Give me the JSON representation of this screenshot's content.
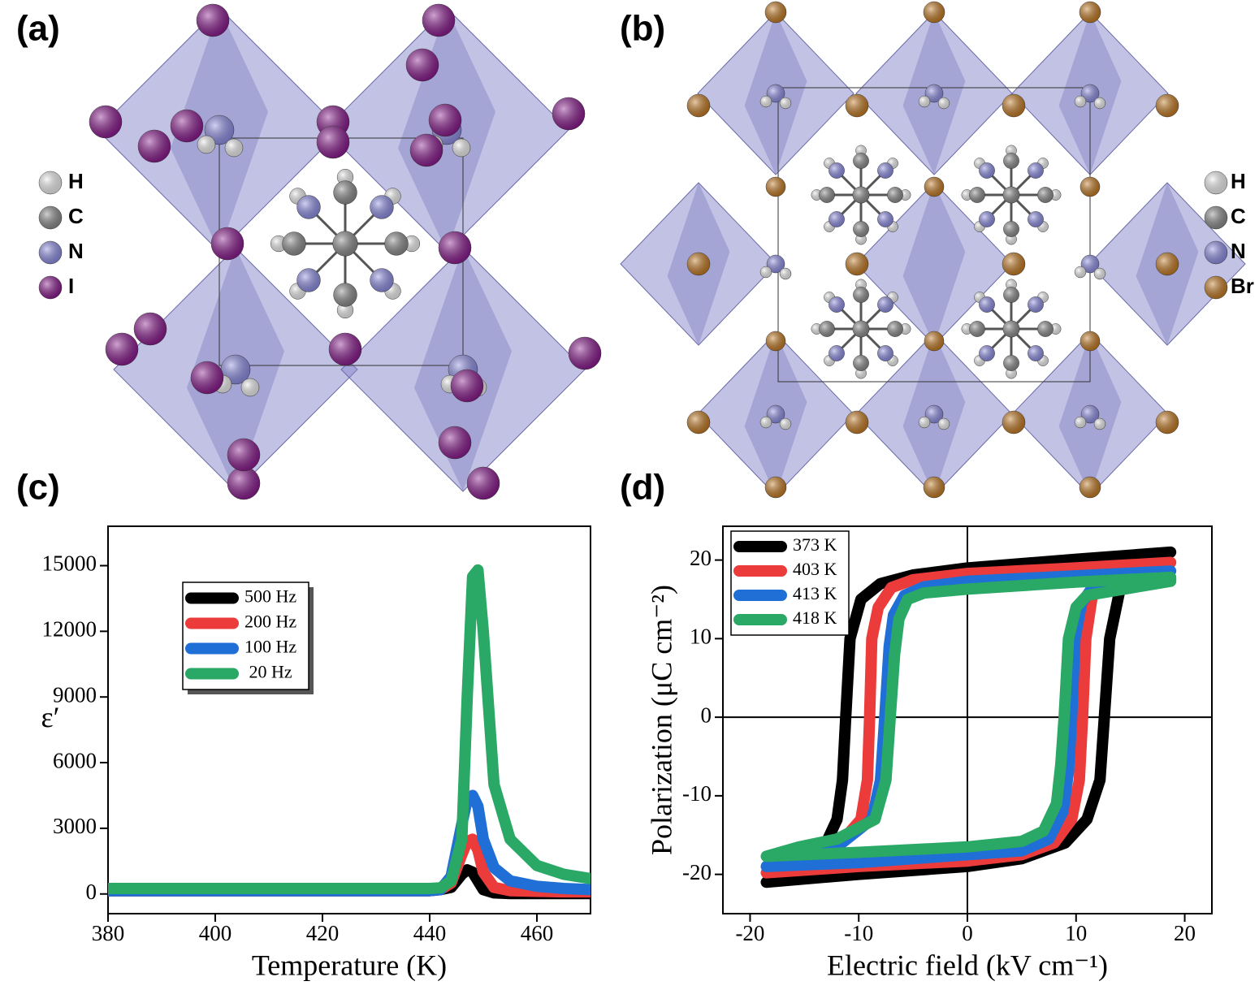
{
  "panels": {
    "a": {
      "label": "(a)",
      "legend": [
        {
          "name": "H",
          "color": "#f2f2f2"
        },
        {
          "name": "C",
          "color": "#8c8c8c"
        },
        {
          "name": "N",
          "color": "#8e8ee6"
        },
        {
          "name": "I",
          "color": "#8a1a8e"
        }
      ]
    },
    "b": {
      "label": "(b)",
      "legend": [
        {
          "name": "H",
          "color": "#f2f2f2"
        },
        {
          "name": "C",
          "color": "#8c8c8c"
        },
        {
          "name": "N",
          "color": "#8e8ee6"
        },
        {
          "name": "Br",
          "color": "#c47a22"
        }
      ]
    },
    "c": {
      "label": "(c)"
    },
    "d": {
      "label": "(d)"
    }
  },
  "chart_data": [
    {
      "type": "line",
      "xlabel": "Temperature (K)",
      "ylabel": "ε′",
      "xlim": [
        380,
        470
      ],
      "ylim": [
        -900,
        16800
      ],
      "xticks": [
        380,
        400,
        420,
        440,
        460
      ],
      "yticks": [
        0,
        3000,
        6000,
        9000,
        12000,
        15000
      ],
      "legend": "center left",
      "x": [
        380,
        400,
        420,
        440,
        442,
        444,
        446,
        447,
        448,
        449,
        450,
        452,
        455,
        460,
        465,
        470
      ],
      "series": [
        {
          "name": "500 Hz",
          "color": "#000000",
          "values": [
            150,
            150,
            150,
            150,
            200,
            300,
            900,
            1100,
            1000,
            600,
            200,
            50,
            20,
            20,
            20,
            20
          ]
        },
        {
          "name": "200 Hz",
          "color": "#ec3b3b",
          "values": [
            150,
            150,
            150,
            150,
            200,
            500,
            1800,
            2400,
            2500,
            2000,
            1000,
            300,
            150,
            120,
            100,
            100
          ]
        },
        {
          "name": "100 Hz",
          "color": "#1f6fd6",
          "values": [
            150,
            150,
            150,
            150,
            200,
            800,
            3200,
            4300,
            4500,
            4000,
            2500,
            1200,
            600,
            350,
            250,
            200
          ]
        },
        {
          "name": " 20 Hz",
          "color": "#2aa866",
          "values": [
            250,
            250,
            250,
            250,
            280,
            600,
            2500,
            9000,
            14500,
            14800,
            12000,
            5000,
            2500,
            1300,
            900,
            700
          ]
        }
      ]
    },
    {
      "type": "loop",
      "xlabel": "Electric field (kV cm⁻¹)",
      "ylabel": "Polarization (μC cm⁻²)",
      "xlim": [
        -22.5,
        22.5
      ],
      "ylim": [
        -25,
        24.3
      ],
      "xticks": [
        -20,
        -10,
        0,
        10,
        20
      ],
      "yticks": [
        -20,
        -10,
        0,
        10,
        20
      ],
      "legend": "upper left",
      "series": [
        {
          "name": "373 K",
          "color": "#000000",
          "x": [
            18.7,
            10,
            0,
            -5,
            -8,
            -9.8,
            -10.8,
            -11.2,
            -11.5,
            -12,
            -13,
            -15.5,
            -18.5,
            -10,
            0,
            5,
            9,
            11,
            12.2,
            12.6,
            13.1,
            14,
            15,
            18.7
          ],
          "values": [
            21,
            20.1,
            19,
            18.1,
            17,
            15,
            10,
            0,
            -8,
            -13,
            -16,
            -19.3,
            -21,
            -20,
            -19,
            -18,
            -16,
            -13,
            -8,
            0,
            10,
            16,
            18.8,
            21
          ]
        },
        {
          "name": "403 K",
          "color": "#ec3b3b",
          "x": [
            18.7,
            10,
            0,
            -5,
            -7,
            -8.2,
            -8.8,
            -9,
            -9.2,
            -9.8,
            -12,
            -15.5,
            -18.5,
            -10,
            0,
            5,
            8,
            9.6,
            10.3,
            10.6,
            10.9,
            11.5,
            12.5,
            18.7
          ],
          "values": [
            19.7,
            19,
            18.3,
            17.5,
            16.5,
            14,
            10,
            0,
            -8,
            -13,
            -16.5,
            -18.5,
            -19.8,
            -19,
            -18.3,
            -17.5,
            -16,
            -13,
            -8,
            0,
            10,
            15.5,
            17.5,
            19.7
          ]
        },
        {
          "name": "413 K",
          "color": "#1f6fd6",
          "x": [
            18.7,
            10,
            0,
            -4,
            -5.8,
            -6.8,
            -7.2,
            -7.6,
            -8,
            -8.8,
            -12,
            -15.5,
            -18.5,
            -10,
            0,
            5,
            7.5,
            8.8,
            9.3,
            9.6,
            9.9,
            10.5,
            11.5,
            18.7
          ],
          "values": [
            18.6,
            18,
            17.3,
            16.6,
            15.5,
            13,
            9,
            0,
            -8,
            -13,
            -16.5,
            -17.8,
            -19,
            -18.5,
            -17.5,
            -17,
            -15.5,
            -12,
            -7,
            0,
            10,
            14.5,
            16.5,
            18.6
          ]
        },
        {
          "name": "418 K",
          "color": "#2aa866",
          "x": [
            18.7,
            10,
            0,
            -4,
            -5.5,
            -6.3,
            -6.7,
            -7.1,
            -7.5,
            -8.5,
            -12,
            -15.5,
            -18.5,
            -10,
            0,
            5,
            7,
            8.2,
            8.6,
            8.9,
            9.3,
            10,
            11,
            18.7
          ],
          "values": [
            17.8,
            17.2,
            16.3,
            15.8,
            15,
            12.5,
            8,
            0,
            -8,
            -13,
            -15.5,
            -16.5,
            -17.7,
            -17.2,
            -16.5,
            -15.8,
            -14.5,
            -11,
            -6,
            0,
            10,
            14,
            15.5,
            17.3
          ]
        }
      ]
    }
  ]
}
